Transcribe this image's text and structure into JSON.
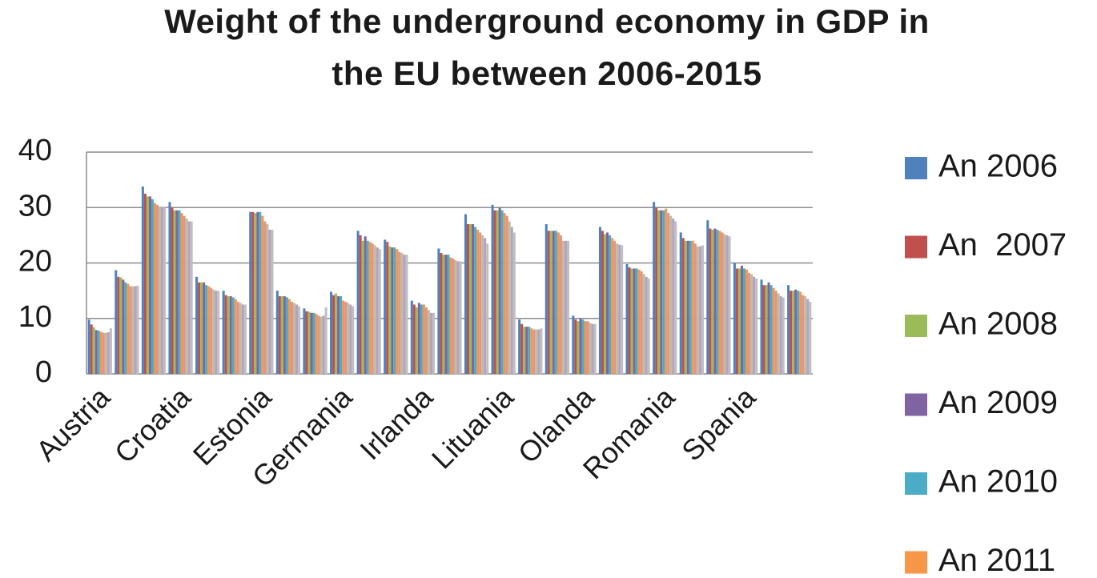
{
  "chart_data": {
    "type": "bar",
    "title": [
      "Weight of the underground economy in GDP in",
      "the EU between 2006-2015"
    ],
    "categories": [
      "Austria",
      null,
      null,
      "Croatia",
      null,
      null,
      "Estonia",
      null,
      null,
      "Germania",
      null,
      null,
      "Irlanda",
      null,
      null,
      "Lituania",
      null,
      null,
      "Olanda",
      null,
      null,
      "Romania",
      null,
      null,
      "Spania",
      null,
      null
    ],
    "series": [
      {
        "name": "An 2006",
        "color": "#4f81bd",
        "values": [
          9.8,
          18.7,
          33.8,
          31,
          17.5,
          15,
          29.2,
          15,
          11.8,
          14.8,
          25.8,
          24.2,
          13.2,
          22.6,
          28.8,
          30.5,
          9.8,
          27,
          10.5,
          26.5,
          19.8,
          31,
          25.5,
          27.7,
          20,
          17,
          16
        ]
      },
      {
        "name": "An  2007",
        "color": "#c0504d",
        "values": [
          8.9,
          17.5,
          32.5,
          30,
          16.5,
          14.2,
          29.2,
          14,
          11.3,
          14.2,
          25,
          23.8,
          12.5,
          21.8,
          27,
          29.5,
          9,
          25.8,
          9.8,
          25.8,
          19.2,
          30,
          24.5,
          26.2,
          19,
          16,
          15
        ]
      },
      {
        "name": "An 2008",
        "color": "#9bbb59",
        "values": [
          8.4,
          17.4,
          32,
          29.5,
          16.5,
          14,
          29,
          14,
          11.2,
          14.5,
          24,
          23,
          12,
          21.5,
          27,
          29.5,
          8.5,
          25.8,
          9.5,
          25.2,
          19,
          29.5,
          24,
          26,
          19,
          16,
          15
        ]
      },
      {
        "name": "An 2009",
        "color": "#8064a2",
        "values": [
          7.9,
          17,
          32,
          29.5,
          16.5,
          14,
          29.2,
          14,
          11,
          14,
          24.8,
          22.8,
          12.8,
          21.5,
          27,
          30,
          8.5,
          25.8,
          10,
          25.5,
          19,
          29.5,
          24,
          26.2,
          19.5,
          16.5,
          15.2
        ]
      },
      {
        "name": "An 2010",
        "color": "#4bacc6",
        "values": [
          7.8,
          16.5,
          31.5,
          29.5,
          16,
          13.8,
          29.2,
          13.8,
          11,
          14,
          24,
          22.8,
          12.5,
          21.5,
          26.5,
          29.5,
          8.5,
          25.8,
          9.8,
          25,
          19,
          29.5,
          24,
          26,
          19,
          16,
          15
        ]
      },
      {
        "name": "An 2011",
        "color": "#f79646",
        "values": [
          7.6,
          16.2,
          30.8,
          29,
          15.8,
          13.5,
          28.5,
          13.5,
          10.8,
          13.2,
          23.8,
          22.5,
          12.5,
          21,
          26,
          29,
          8.2,
          25.5,
          9.5,
          24.5,
          18.8,
          29.8,
          24,
          25.8,
          18.8,
          15.5,
          14.8
        ]
      },
      {
        "color": "#d99694",
        "values": [
          7.4,
          15.8,
          30.5,
          28.5,
          15.5,
          13,
          27.5,
          13,
          10.5,
          13,
          23.5,
          22,
          12,
          20.8,
          25.5,
          28.5,
          8,
          25,
          9.5,
          24,
          18.5,
          29,
          23.5,
          25.5,
          18.2,
          15,
          14.2
        ]
      },
      {
        "color": "#c4bd97",
        "values": [
          7.4,
          15.8,
          30,
          28,
          15.2,
          12.8,
          27,
          12.8,
          10.3,
          12.8,
          23.2,
          21.8,
          11.5,
          20.5,
          25,
          27.5,
          8,
          24,
          9.2,
          23.5,
          18,
          28.5,
          23,
          25.2,
          18,
          14.5,
          14
        ]
      },
      {
        "color": "#b3a2c7",
        "values": [
          7.5,
          15.8,
          30,
          27.5,
          15,
          12.5,
          26,
          12.5,
          10.5,
          12.5,
          22.8,
          21.5,
          11,
          20.3,
          24.5,
          26.5,
          8,
          24,
          9,
          23.3,
          17.5,
          28,
          23,
          25,
          17.5,
          14,
          13.5
        ]
      },
      {
        "color": "#bfbfbf",
        "values": [
          8.2,
          15.9,
          30,
          27.5,
          15,
          12.5,
          26,
          12.2,
          12,
          12.2,
          22.5,
          21.5,
          11,
          20.3,
          23.5,
          25.5,
          8.2,
          24,
          9,
          23.2,
          17.2,
          27.5,
          23.2,
          24.8,
          17.2,
          13.8,
          13
        ]
      }
    ],
    "ylim": [
      0,
      40
    ],
    "yticks": [
      0,
      10,
      20,
      30,
      40
    ],
    "grid": true
  }
}
